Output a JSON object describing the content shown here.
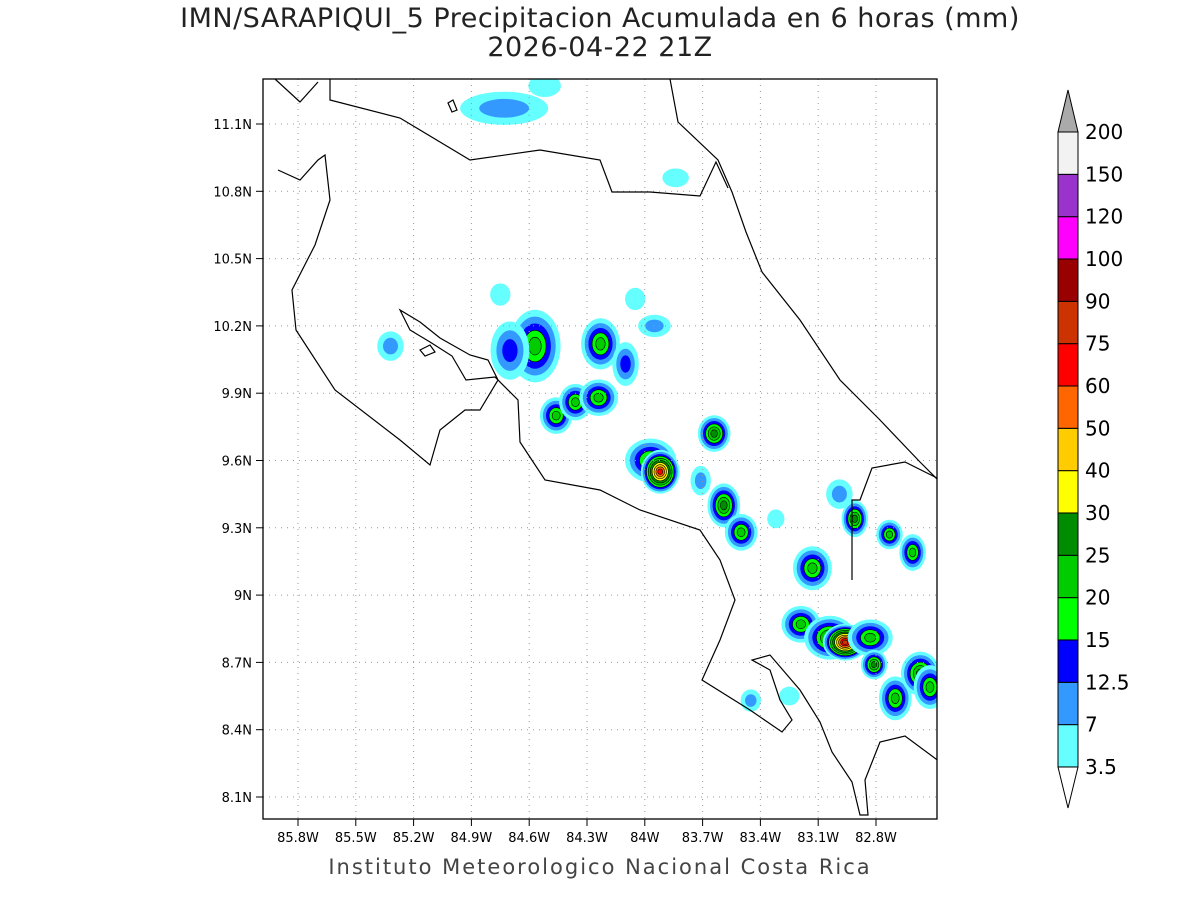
{
  "title": "IMN/SARAPIQUI_5 Precipitacion Acumulada en 6 horas (mm)",
  "subtitle": "2026-04-22 21Z",
  "credit": "Instituto Meteorologico Nacional Costa Rica",
  "lon_ticks": [
    "85.8W",
    "85.5W",
    "85.2W",
    "84.9W",
    "84.6W",
    "84.3W",
    "84W",
    "83.7W",
    "83.4W",
    "83.1W",
    "82.8W"
  ],
  "lat_ticks": [
    "11.1N",
    "10.8N",
    "10.5N",
    "10.2N",
    "9.9N",
    "9.6N",
    "9.3N",
    "9N",
    "8.7N",
    "8.4N",
    "8.1N"
  ],
  "legend": {
    "labels": [
      "3.5",
      "7",
      "12.5",
      "15",
      "20",
      "25",
      "30",
      "40",
      "50",
      "60",
      "75",
      "90",
      "100",
      "120",
      "150",
      "200"
    ],
    "colors": [
      "#66ffff",
      "#3399ff",
      "#0000ff",
      "#00ff00",
      "#00cc00",
      "#008c00",
      "#ffff00",
      "#ffcc00",
      "#ff6600",
      "#ff0000",
      "#cc3300",
      "#990000",
      "#ff00ff",
      "#9933cc",
      "#f2f2f2"
    ],
    "over_color": "#aaaaaa"
  },
  "precip_cells": [
    {
      "lon": 84.73,
      "lat": 11.17,
      "v": 7,
      "rx": 0.13,
      "ry": 0.035
    },
    {
      "lon": 84.52,
      "lat": 11.27,
      "v": 3.5,
      "rx": 0.04,
      "ry": 0.02
    },
    {
      "lon": 83.84,
      "lat": 10.86,
      "v": 3.5,
      "rx": 0.03,
      "ry": 0.015
    },
    {
      "lon": 84.57,
      "lat": 10.11,
      "v": 20,
      "rx": 0.07,
      "ry": 0.09
    },
    {
      "lon": 84.7,
      "lat": 10.09,
      "v": 12.5,
      "rx": 0.05,
      "ry": 0.07
    },
    {
      "lon": 84.23,
      "lat": 10.12,
      "v": 20,
      "rx": 0.05,
      "ry": 0.06
    },
    {
      "lon": 84.1,
      "lat": 10.03,
      "v": 12.5,
      "rx": 0.03,
      "ry": 0.05
    },
    {
      "lon": 85.32,
      "lat": 10.11,
      "v": 7,
      "rx": 0.03,
      "ry": 0.03
    },
    {
      "lon": 84.46,
      "lat": 9.8,
      "v": 20,
      "rx": 0.04,
      "ry": 0.04
    },
    {
      "lon": 84.36,
      "lat": 9.86,
      "v": 20,
      "rx": 0.04,
      "ry": 0.04
    },
    {
      "lon": 84.24,
      "lat": 9.88,
      "v": 20,
      "rx": 0.05,
      "ry": 0.04
    },
    {
      "lon": 83.97,
      "lat": 9.6,
      "v": 20,
      "rx": 0.07,
      "ry": 0.05
    },
    {
      "lon": 83.92,
      "lat": 9.55,
      "v": 60,
      "rx": 0.05,
      "ry": 0.05
    },
    {
      "lon": 83.64,
      "lat": 9.72,
      "v": 25,
      "rx": 0.04,
      "ry": 0.04
    },
    {
      "lon": 83.59,
      "lat": 9.4,
      "v": 25,
      "rx": 0.04,
      "ry": 0.05
    },
    {
      "lon": 83.5,
      "lat": 9.28,
      "v": 20,
      "rx": 0.04,
      "ry": 0.04
    },
    {
      "lon": 83.13,
      "lat": 9.12,
      "v": 20,
      "rx": 0.05,
      "ry": 0.05
    },
    {
      "lon": 82.91,
      "lat": 9.34,
      "v": 25,
      "rx": 0.03,
      "ry": 0.04
    },
    {
      "lon": 82.73,
      "lat": 9.27,
      "v": 20,
      "rx": 0.03,
      "ry": 0.03
    },
    {
      "lon": 82.61,
      "lat": 9.19,
      "v": 20,
      "rx": 0.03,
      "ry": 0.04
    },
    {
      "lon": 83.19,
      "lat": 8.87,
      "v": 20,
      "rx": 0.05,
      "ry": 0.04
    },
    {
      "lon": 83.04,
      "lat": 8.81,
      "v": 25,
      "rx": 0.07,
      "ry": 0.05
    },
    {
      "lon": 82.96,
      "lat": 8.79,
      "v": 75,
      "rx": 0.06,
      "ry": 0.04
    },
    {
      "lon": 82.83,
      "lat": 8.81,
      "v": 20,
      "rx": 0.06,
      "ry": 0.04
    },
    {
      "lon": 82.81,
      "lat": 8.69,
      "v": 25,
      "rx": 0.03,
      "ry": 0.03
    },
    {
      "lon": 82.7,
      "lat": 8.54,
      "v": 20,
      "rx": 0.04,
      "ry": 0.05
    },
    {
      "lon": 82.57,
      "lat": 8.65,
      "v": 25,
      "rx": 0.05,
      "ry": 0.05
    },
    {
      "lon": 82.52,
      "lat": 8.59,
      "v": 20,
      "rx": 0.04,
      "ry": 0.05
    },
    {
      "lon": 83.45,
      "lat": 8.53,
      "v": 7,
      "rx": 0.02,
      "ry": 0.02
    },
    {
      "lon": 83.25,
      "lat": 8.55,
      "v": 3.5,
      "rx": 0.02,
      "ry": 0.015
    },
    {
      "lon": 82.99,
      "lat": 9.45,
      "v": 7,
      "rx": 0.03,
      "ry": 0.03
    },
    {
      "lon": 83.71,
      "lat": 9.51,
      "v": 7,
      "rx": 0.02,
      "ry": 0.03
    },
    {
      "lon": 83.32,
      "lat": 9.34,
      "v": 3.5,
      "rx": 0.015,
      "ry": 0.015
    },
    {
      "lon": 84.75,
      "lat": 10.34,
      "v": 3.5,
      "rx": 0.02,
      "ry": 0.02
    },
    {
      "lon": 84.05,
      "lat": 10.32,
      "v": 3.5,
      "rx": 0.02,
      "ry": 0.02
    },
    {
      "lon": 83.95,
      "lat": 10.2,
      "v": 7,
      "rx": 0.04,
      "ry": 0.02
    }
  ]
}
